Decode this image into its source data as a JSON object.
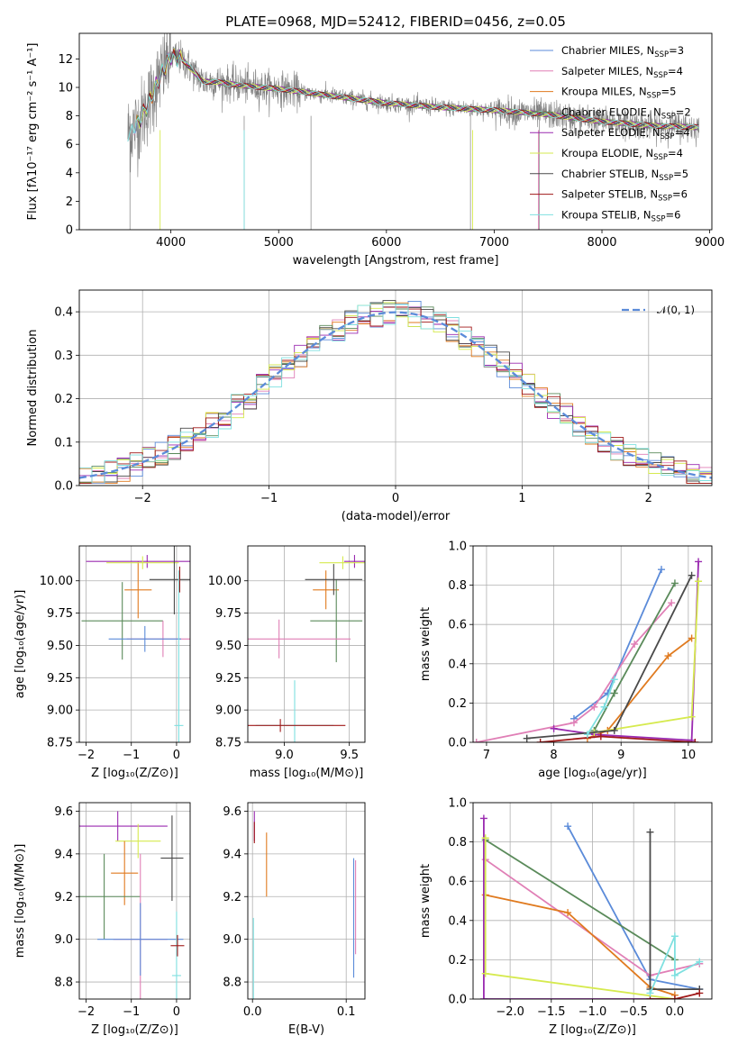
{
  "figure": {
    "title": "PLATE=0968, MJD=52412, FIBERID=0456, z=0.05",
    "colors": {
      "Chabrier MILES": "#5b8bd9",
      "Salpeter MILES": "#e07fb6",
      "Kroupa MILES": "#e07a1f",
      "Chabrier ELODIE": "#5a8a5a",
      "Salpeter ELODIE": "#9a2ab0",
      "Kroupa ELODIE": "#d6ea4f",
      "Chabrier STELIB": "#4a4a4a",
      "Salpeter STELIB": "#a01818",
      "Kroupa STELIB": "#7fe0e0",
      "data": "#808080"
    }
  },
  "chart_data": [
    {
      "id": "spectrum",
      "type": "line",
      "title": "PLATE=0968, MJD=52412, FIBERID=0456, z=0.05",
      "xlabel": "wavelength [Angstrom, rest frame]",
      "ylabel": "Flux [fλ10⁻¹⁷ erg cm⁻² s⁻¹ A⁻¹]",
      "xlim": [
        3150,
        9020
      ],
      "ylim": [
        0,
        13.8
      ],
      "xticks": [
        4000,
        5000,
        6000,
        7000,
        8000,
        9000
      ],
      "yticks": [
        0,
        2,
        4,
        6,
        8,
        10,
        12
      ],
      "legend_position": "top-right",
      "legend": [
        {
          "label": "Chabrier MILES",
          "n": "3"
        },
        {
          "label": "Salpeter MILES",
          "n": "4"
        },
        {
          "label": "Kroupa MILES",
          "n": "5"
        },
        {
          "label": "Chabrier ELODIE",
          "n": "2"
        },
        {
          "label": "Salpeter ELODIE",
          "n": "4"
        },
        {
          "label": "Kroupa ELODIE",
          "n": "4"
        },
        {
          "label": "Chabrier STELIB",
          "n": "5"
        },
        {
          "label": "Salpeter STELIB",
          "n": "6"
        },
        {
          "label": "Kroupa STELIB",
          "n": "6"
        }
      ],
      "model_continuum": {
        "x": [
          3600,
          3700,
          3800,
          3900,
          4000,
          4100,
          4200,
          4300,
          4400,
          4500,
          4700,
          5000,
          5500,
          6000,
          6500,
          7000,
          7500,
          8000,
          8500,
          8900
        ],
        "y": [
          6.8,
          7.5,
          9.0,
          10.8,
          12.2,
          12.0,
          11.2,
          10.4,
          10.4,
          10.3,
          10.1,
          9.9,
          9.4,
          8.9,
          8.6,
          8.4,
          8.1,
          7.6,
          7.3,
          7.2
        ]
      }
    },
    {
      "id": "residuals",
      "type": "histogram",
      "xlabel": "(data-model)/error",
      "ylabel": "Normed distribution",
      "xlim": [
        -2.5,
        2.5
      ],
      "ylim": [
        0,
        0.45
      ],
      "xticks": [
        -2,
        -1,
        0,
        1,
        2
      ],
      "yticks": [
        0.0,
        0.1,
        0.2,
        0.3,
        0.4
      ],
      "bin_width": 0.1,
      "reference_curve": "𝒩(0, 1)",
      "legend_position": "top-right"
    },
    {
      "id": "age_vs_Z",
      "type": "errorbar",
      "xlabel": "Z [log₁₀(Z/Z⊙)]",
      "ylabel": "age  [log₁₀(age/yr)]",
      "xlim": [
        -2.15,
        0.3
      ],
      "ylim": [
        8.75,
        10.27
      ],
      "xticks": [
        -2,
        -1,
        0
      ],
      "yticks": [
        8.75,
        9.0,
        9.25,
        9.5,
        9.75,
        10.0
      ],
      "points": [
        {
          "model": "Kroupa MILES",
          "x": -0.85,
          "y": 9.93,
          "xerr": 0.3,
          "yerr": 0.22
        },
        {
          "model": "Salpeter ELODIE",
          "x": -0.65,
          "y": 10.15,
          "xerr": 1.35,
          "yerr": 0.05
        },
        {
          "model": "Kroupa ELODIE",
          "x": -0.75,
          "y": 10.14,
          "xerr": 0.8,
          "yerr": 0.05
        },
        {
          "model": "Chabrier ELODIE",
          "x": -1.2,
          "y": 9.69,
          "xerr": 0.9,
          "yerr": 0.3
        },
        {
          "model": "Salpeter MILES",
          "x": -0.3,
          "y": 9.55,
          "xerr": 0.8,
          "yerr": 0.14
        },
        {
          "model": "Chabrier MILES",
          "x": -0.7,
          "y": 9.55,
          "xerr": 0.8,
          "yerr": 0.1
        },
        {
          "model": "Chabrier STELIB",
          "x": -0.05,
          "y": 10.01,
          "xerr": 0.55,
          "yerr": 0.27
        },
        {
          "model": "Kroupa STELIB",
          "x": 0.05,
          "y": 8.88,
          "xerr": 0.1,
          "yerr": 1.2
        },
        {
          "model": "Salpeter STELIB",
          "x": 0.07,
          "y": 10.01,
          "xerr": 0.0,
          "yerr": 0.1
        }
      ]
    },
    {
      "id": "age_vs_mass",
      "type": "errorbar",
      "xlabel": "mass [log₁₀(M/M⊙)]",
      "ylabel": "",
      "xlim": [
        8.72,
        9.62
      ],
      "ylim": [
        8.75,
        10.27
      ],
      "xticks": [
        9.0,
        9.5
      ],
      "yticks": [
        8.75,
        9.0,
        9.25,
        9.5,
        9.75,
        10.0
      ],
      "points": [
        {
          "model": "Salpeter ELODIE",
          "x": 9.54,
          "y": 10.15,
          "xerr": 0.08,
          "yerr": 0.05
        },
        {
          "model": "Kroupa ELODIE",
          "x": 9.45,
          "y": 10.14,
          "xerr": 0.18,
          "yerr": 0.05
        },
        {
          "model": "Kroupa MILES",
          "x": 9.32,
          "y": 9.93,
          "xerr": 0.1,
          "yerr": 0.15
        },
        {
          "model": "Chabrier ELODIE",
          "x": 9.4,
          "y": 9.69,
          "xerr": 0.2,
          "yerr": 0.32
        },
        {
          "model": "Salpeter MILES",
          "x": 8.96,
          "y": 9.55,
          "xerr": 0.55,
          "yerr": 0.15
        },
        {
          "model": "Chabrier STELIB",
          "x": 9.38,
          "y": 10.01,
          "xerr": 0.22,
          "yerr": 0.12
        },
        {
          "model": "Kroupa STELIB",
          "x": 9.08,
          "y": 8.88,
          "xerr": 0.3,
          "yerr": 0.35
        },
        {
          "model": "Salpeter STELIB",
          "x": 8.97,
          "y": 8.88,
          "xerr": 0.5,
          "yerr": 0.05
        }
      ]
    },
    {
      "id": "weight_vs_age",
      "type": "line",
      "xlabel": "age  [log₁₀(age/yr)]",
      "ylabel": "mass weight",
      "xlim": [
        6.8,
        10.35
      ],
      "ylim": [
        0,
        1.0
      ],
      "xticks": [
        7,
        8,
        9,
        10
      ],
      "yticks": [
        0.0,
        0.2,
        0.4,
        0.6,
        0.8,
        1.0
      ],
      "series": [
        {
          "model": "Chabrier MILES",
          "x": [
            8.3,
            8.8,
            9.6
          ],
          "y": [
            0.12,
            0.25,
            0.88
          ]
        },
        {
          "model": "Salpeter MILES",
          "x": [
            6.85,
            8.3,
            8.6,
            9.2,
            9.75
          ],
          "y": [
            0.0,
            0.1,
            0.18,
            0.5,
            0.71
          ]
        },
        {
          "model": "Kroupa MILES",
          "x": [
            8.5,
            8.8,
            9.7,
            10.05
          ],
          "y": [
            0.02,
            0.06,
            0.44,
            0.53
          ]
        },
        {
          "model": "Chabrier ELODIE",
          "x": [
            8.6,
            8.9,
            9.8
          ],
          "y": [
            0.06,
            0.25,
            0.81
          ]
        },
        {
          "model": "Salpeter ELODIE",
          "x": [
            8.0,
            8.6,
            10.05,
            10.15
          ],
          "y": [
            0.07,
            0.04,
            0.01,
            0.92
          ]
        },
        {
          "model": "Kroupa ELODIE",
          "x": [
            8.6,
            10.05,
            10.15
          ],
          "y": [
            0.05,
            0.13,
            0.82
          ]
        },
        {
          "model": "Chabrier STELIB",
          "x": [
            7.6,
            8.9,
            10.05
          ],
          "y": [
            0.02,
            0.06,
            0.85
          ]
        },
        {
          "model": "Salpeter STELIB",
          "x": [
            7.8,
            8.7,
            10.1
          ],
          "y": [
            0.0,
            0.03,
            0.0
          ]
        },
        {
          "model": "Kroupa STELIB",
          "x": [
            8.5,
            8.75,
            8.9
          ],
          "y": [
            0.04,
            0.18,
            0.32
          ]
        }
      ]
    },
    {
      "id": "mass_vs_Z",
      "type": "errorbar",
      "xlabel": "Z [log₁₀(Z/Z⊙)]",
      "ylabel": "mass [log₁₀(M/M⊙)]",
      "xlim": [
        -2.15,
        0.3
      ],
      "ylim": [
        8.72,
        9.64
      ],
      "xticks": [
        -2,
        -1,
        0
      ],
      "yticks": [
        8.8,
        9.0,
        9.2,
        9.4,
        9.6
      ],
      "points": [
        {
          "model": "Salpeter ELODIE",
          "x": -1.3,
          "y": 9.53,
          "xerr": 1.1,
          "yerr": 0.07
        },
        {
          "model": "Kroupa ELODIE",
          "x": -0.85,
          "y": 9.46,
          "xerr": 0.5,
          "yerr": 0.08
        },
        {
          "model": "Kroupa MILES",
          "x": -1.15,
          "y": 9.31,
          "xerr": 0.3,
          "yerr": 0.15
        },
        {
          "model": "Chabrier ELODIE",
          "x": -1.6,
          "y": 9.2,
          "xerr": 0.8,
          "yerr": 0.2
        },
        {
          "model": "Salpeter MILES",
          "x": -0.8,
          "y": 9.0,
          "xerr": 0.6,
          "yerr": 0.4
        },
        {
          "model": "Chabrier MILES",
          "x": -0.8,
          "y": 9.0,
          "xerr": 0.95,
          "yerr": 0.17
        },
        {
          "model": "Chabrier STELIB",
          "x": -0.1,
          "y": 9.38,
          "xerr": 0.25,
          "yerr": 0.2
        },
        {
          "model": "Kroupa STELIB",
          "x": 0.0,
          "y": 8.83,
          "xerr": 0.1,
          "yerr": 0.3
        },
        {
          "model": "Salpeter STELIB",
          "x": 0.02,
          "y": 8.97,
          "xerr": 0.15,
          "yerr": 0.05
        }
      ]
    },
    {
      "id": "mass_vs_EBV",
      "type": "errorbar",
      "xlabel": "E(B-V)",
      "ylabel": "",
      "xlim": [
        -0.005,
        0.12
      ],
      "ylim": [
        8.72,
        9.64
      ],
      "xticks": [
        0.0,
        0.1
      ],
      "yticks": [
        8.8,
        9.0,
        9.2,
        9.4,
        9.6
      ],
      "points": [
        {
          "model": "Salpeter ELODIE",
          "x": 0.002,
          "y": 9.53,
          "xerr": 0,
          "yerr": 0.07
        },
        {
          "model": "Salpeter STELIB",
          "x": 0.002,
          "y": 9.5,
          "xerr": 0,
          "yerr": 0.05
        },
        {
          "model": "Kroupa MILES",
          "x": 0.015,
          "y": 9.35,
          "xerr": 0,
          "yerr": 0.15
        },
        {
          "model": "Salpeter MILES",
          "x": 0.11,
          "y": 9.15,
          "xerr": 0,
          "yerr": 0.22
        },
        {
          "model": "Chabrier MILES",
          "x": 0.108,
          "y": 9.1,
          "xerr": 0,
          "yerr": 0.28
        },
        {
          "model": "Kroupa STELIB",
          "x": 0.001,
          "y": 8.9,
          "xerr": 0,
          "yerr": 0.2
        }
      ]
    },
    {
      "id": "weight_vs_Z",
      "type": "line",
      "xlabel": "Z [log₁₀(Z/Z⊙)]",
      "ylabel": "mass weight",
      "xlim": [
        -2.45,
        0.45
      ],
      "ylim": [
        0,
        1.0
      ],
      "xticks": [
        -2.0,
        -1.5,
        -1.0,
        -0.5,
        0.0
      ],
      "yticks": [
        0.0,
        0.2,
        0.4,
        0.6,
        0.8,
        1.0
      ],
      "series": [
        {
          "model": "Chabrier MILES",
          "x": [
            -1.3,
            -0.3,
            0.3
          ],
          "y": [
            0.88,
            0.1,
            0.05
          ]
        },
        {
          "model": "Salpeter MILES",
          "x": [
            -2.3,
            -0.3,
            0.3
          ],
          "y": [
            0.71,
            0.12,
            0.18
          ]
        },
        {
          "model": "Kroupa MILES",
          "x": [
            -2.3,
            -1.3,
            -0.3,
            0.0
          ],
          "y": [
            0.53,
            0.44,
            0.06,
            0.02
          ]
        },
        {
          "model": "Chabrier ELODIE",
          "x": [
            -2.3,
            0.0
          ],
          "y": [
            0.81,
            0.2
          ]
        },
        {
          "model": "Salpeter ELODIE",
          "x": [
            -2.32,
            -2.32,
            0.0
          ],
          "y": [
            0.92,
            0.0,
            0.0
          ]
        },
        {
          "model": "Kroupa ELODIE",
          "x": [
            -2.3,
            -2.3,
            0.0
          ],
          "y": [
            0.82,
            0.13,
            0.0
          ]
        },
        {
          "model": "Chabrier STELIB",
          "x": [
            -0.3,
            -0.3,
            0.3
          ],
          "y": [
            0.85,
            0.05,
            0.05
          ]
        },
        {
          "model": "Salpeter STELIB",
          "x": [
            -0.3,
            0.0,
            0.3
          ],
          "y": [
            0.0,
            0.0,
            0.03
          ]
        },
        {
          "model": "Kroupa STELIB",
          "x": [
            -0.3,
            0.0,
            0.0,
            0.3
          ],
          "y": [
            0.03,
            0.32,
            0.12,
            0.19
          ]
        }
      ]
    }
  ]
}
